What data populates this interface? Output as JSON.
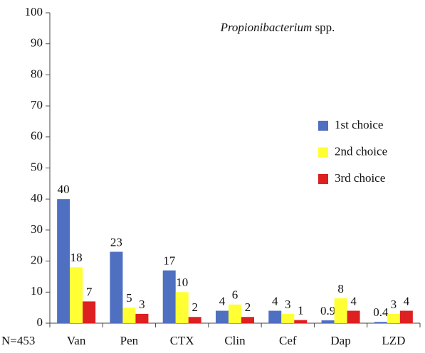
{
  "chart_data": {
    "type": "bar",
    "title": {
      "italic": "Propionibacterium",
      "roman": " spp."
    },
    "annotation": "N=453",
    "categories": [
      "Van",
      "Pen",
      "CTX",
      "Clin",
      "Cef",
      "Dap",
      "LZD"
    ],
    "series": [
      {
        "name": "1st choice",
        "color": "#4f6fc0",
        "values": [
          40,
          23,
          17,
          4,
          4,
          0.9,
          0.4
        ]
      },
      {
        "name": "2nd choice",
        "color": "#ffff33",
        "values": [
          18,
          5,
          10,
          6,
          3,
          8,
          3
        ]
      },
      {
        "name": "3rd choice",
        "color": "#dd2020",
        "values": [
          7,
          3,
          2,
          2,
          1,
          4,
          4
        ]
      }
    ],
    "ylim": [
      0,
      100
    ],
    "yticks": [
      0,
      10,
      20,
      30,
      40,
      50,
      60,
      70,
      80,
      90,
      100
    ],
    "grid": false,
    "legend": "right"
  }
}
